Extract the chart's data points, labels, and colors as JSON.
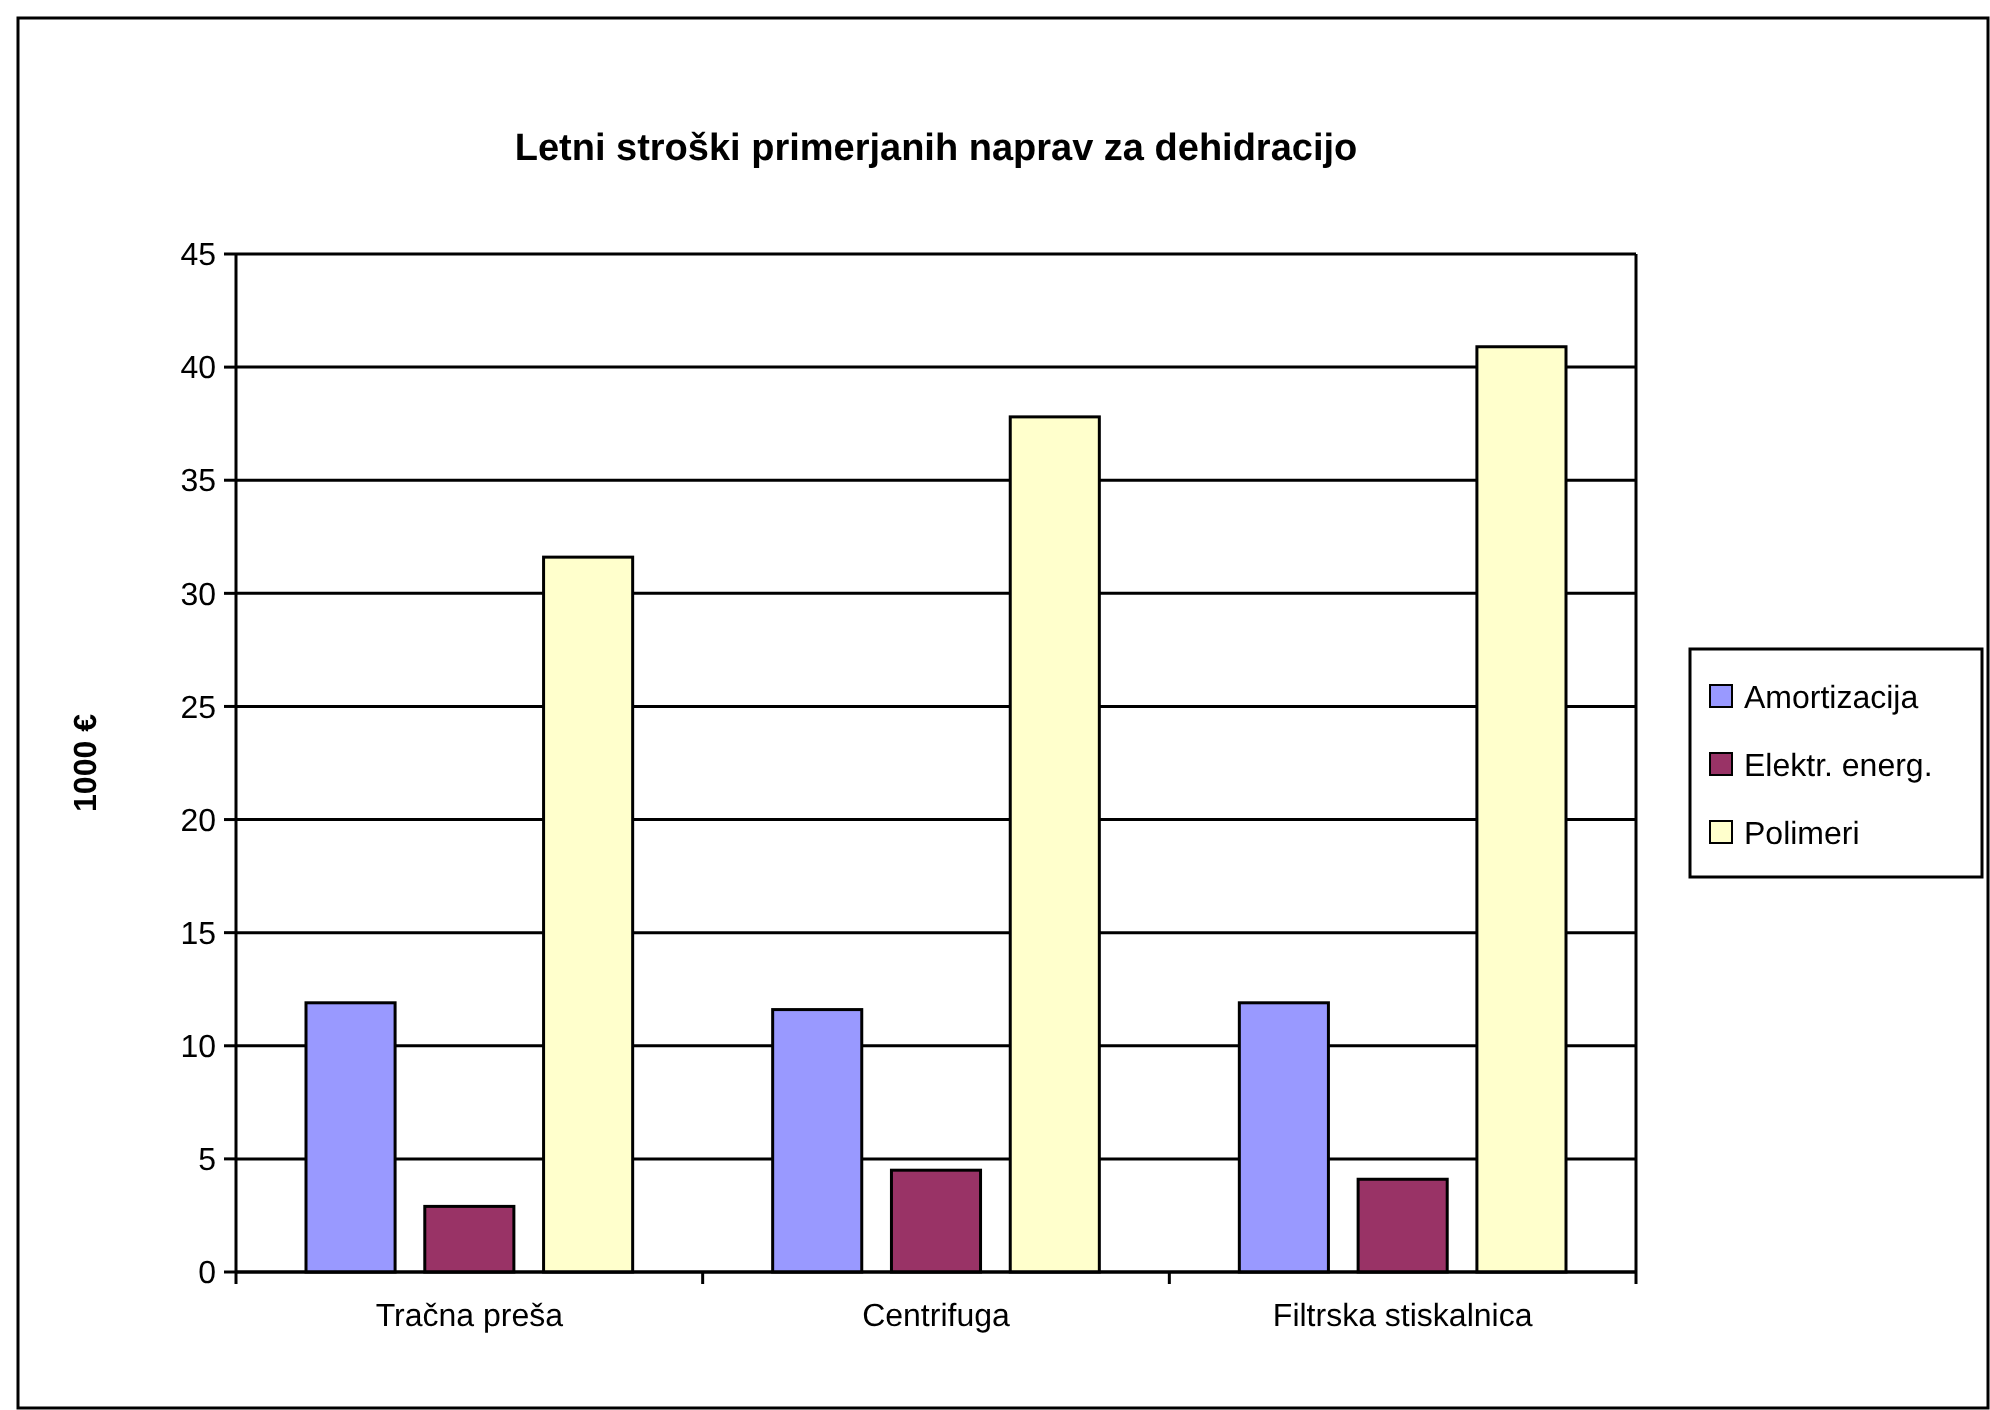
{
  "chart_data": {
    "type": "bar",
    "title": "Letni stroški primerjanih naprav za dehidracijo",
    "ylabel": "1000 €",
    "categories": [
      "Tračna preša",
      "Centrifuga",
      "Filtrska stiskalnica"
    ],
    "series": [
      {
        "name": "Amortizacija",
        "color": "#9999ff",
        "values": [
          11.9,
          11.6,
          11.9
        ]
      },
      {
        "name": "Elektr. energ.",
        "color": "#993366",
        "values": [
          2.9,
          4.5,
          4.1
        ]
      },
      {
        "name": "Polimeri",
        "color": "#ffffcc",
        "values": [
          31.6,
          37.8,
          40.9
        ]
      }
    ],
    "ylim": [
      0,
      45
    ],
    "yticks": [
      0,
      5,
      10,
      15,
      20,
      25,
      30,
      35,
      40,
      45
    ],
    "grid": "y",
    "legend": "right"
  }
}
